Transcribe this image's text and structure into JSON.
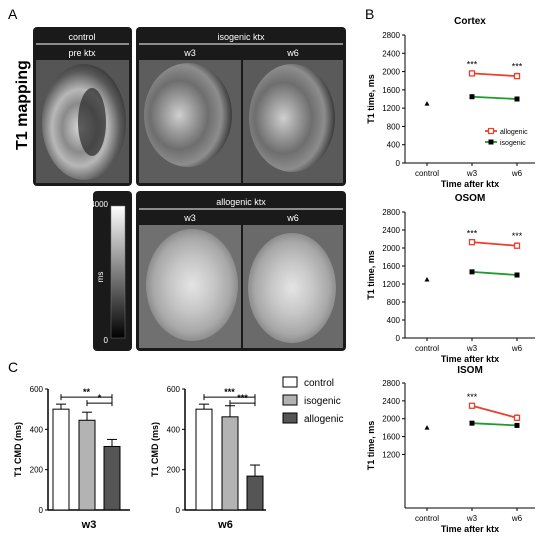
{
  "panel_labels": {
    "a": "A",
    "b": "B",
    "c": "C"
  },
  "panel_a": {
    "side_title": "T1 mapping",
    "group_control": "control",
    "group_isogenic": "isogenic ktx",
    "group_allogenic": "allogenic ktx",
    "col_pre": "pre ktx",
    "col_w3": "w3",
    "col_w6": "w6",
    "colorbar_max": "4000",
    "colorbar_min": "0",
    "colorbar_unit": "ms"
  },
  "legend_b": {
    "allogenic": "allogenic",
    "isogenic": "isogenic"
  },
  "legend_c": {
    "control": "control",
    "isogenic": "isogenic",
    "allogenic": "allogenic"
  },
  "colors": {
    "allogenic": "#e8402a",
    "isogenic": "#1f9b2a",
    "bar_control": "#ffffff",
    "bar_isogenic": "#b3b3b3",
    "bar_allogenic": "#555555",
    "panel_bg": "#1a1a1a"
  },
  "chart_data": [
    {
      "type": "line",
      "panel": "B",
      "title": "Cortex",
      "xlabel": "Time after ktx",
      "ylabel": "T1 time, ms",
      "categories": [
        "control",
        "w3",
        "w6"
      ],
      "ylim": [
        0,
        2800
      ],
      "yticks": [
        0,
        400,
        800,
        1200,
        1600,
        2000,
        2400,
        2800
      ],
      "control_value": 1300,
      "series": [
        {
          "name": "allogenic",
          "values": [
            null,
            1960,
            1900
          ],
          "errors": [
            null,
            40,
            60
          ]
        },
        {
          "name": "isogenic",
          "values": [
            null,
            1450,
            1400
          ],
          "errors": [
            null,
            30,
            30
          ]
        }
      ],
      "annotations": [
        {
          "category": "w3",
          "text": "***"
        },
        {
          "category": "w6",
          "text": "***"
        }
      ],
      "legend": "right"
    },
    {
      "type": "line",
      "panel": "B",
      "title": "OSOM",
      "xlabel": "Time after ktx",
      "ylabel": "T1 time, ms",
      "categories": [
        "control",
        "w3",
        "w6"
      ],
      "ylim": [
        0,
        2800
      ],
      "yticks": [
        0,
        400,
        800,
        1200,
        1600,
        2000,
        2400,
        2800
      ],
      "control_value": 1300,
      "series": [
        {
          "name": "allogenic",
          "values": [
            null,
            2130,
            2050
          ],
          "errors": [
            null,
            40,
            60
          ]
        },
        {
          "name": "isogenic",
          "values": [
            null,
            1470,
            1400
          ],
          "errors": [
            null,
            30,
            40
          ]
        }
      ],
      "annotations": [
        {
          "category": "w3",
          "text": "***"
        },
        {
          "category": "w6",
          "text": "***"
        }
      ]
    },
    {
      "type": "line",
      "panel": "B",
      "title": "ISOM",
      "xlabel": "Time after ktx",
      "ylabel": "T1 time, ms",
      "categories": [
        "control",
        "w3",
        "w6"
      ],
      "ylim": [
        0,
        2800
      ],
      "yticks": [
        1200,
        1600,
        2000,
        2400,
        2800
      ],
      "control_value": 1800,
      "series": [
        {
          "name": "allogenic",
          "values": [
            null,
            2290,
            2020
          ],
          "errors": [
            null,
            40,
            60
          ]
        },
        {
          "name": "isogenic",
          "values": [
            null,
            1900,
            1850
          ],
          "errors": [
            null,
            30,
            40
          ]
        }
      ],
      "annotations": [
        {
          "category": "w3",
          "text": "***"
        }
      ]
    },
    {
      "type": "bar",
      "panel": "C",
      "title": "w3",
      "ylabel": "T1 CMD (ms)",
      "ylim": [
        0,
        600
      ],
      "yticks": [
        0,
        200,
        400,
        600
      ],
      "categories": [
        "control",
        "isogenic",
        "allogenic"
      ],
      "values": [
        500,
        445,
        315
      ],
      "errors": [
        25,
        40,
        35
      ],
      "significance": [
        {
          "from": 0,
          "to": 2,
          "text": "**"
        },
        {
          "from": 1,
          "to": 2,
          "text": "*"
        }
      ]
    },
    {
      "type": "bar",
      "panel": "C",
      "title": "w6",
      "ylabel": "T1 CMD (ms)",
      "ylim": [
        0,
        600
      ],
      "yticks": [
        0,
        200,
        400,
        600
      ],
      "categories": [
        "control",
        "isogenic",
        "allogenic"
      ],
      "values": [
        500,
        462,
        168
      ],
      "errors": [
        25,
        55,
        55
      ],
      "significance": [
        {
          "from": 0,
          "to": 2,
          "text": "***"
        },
        {
          "from": 1,
          "to": 2,
          "text": "***"
        }
      ]
    }
  ]
}
